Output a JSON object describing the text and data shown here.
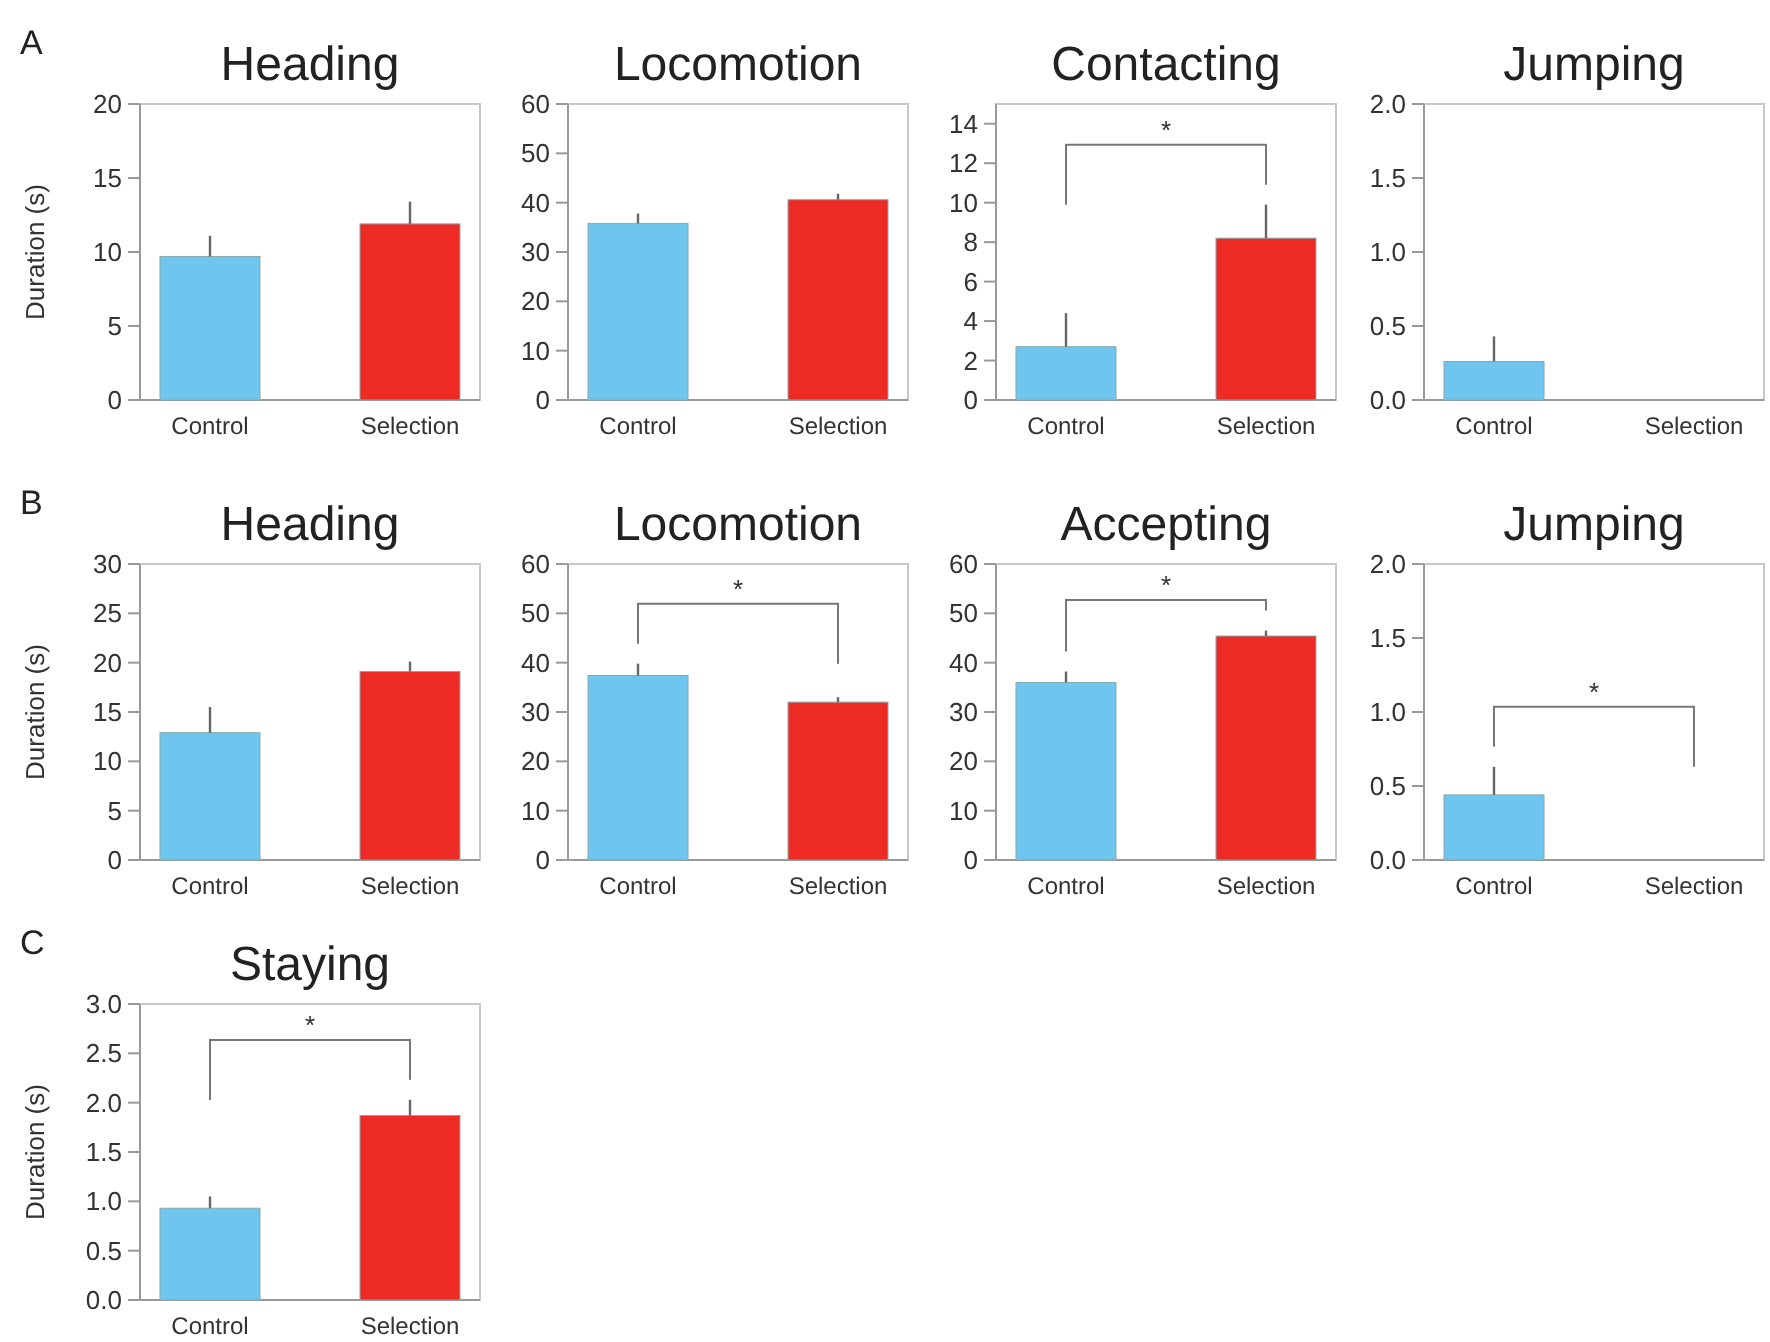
{
  "chart_data": [
    {
      "type": "bar",
      "title": "Heading",
      "ylabel": "Duration (s)",
      "categories": [
        "Control",
        "Selection"
      ],
      "values": [
        9.7,
        11.9
      ],
      "colors": [
        "#6ec6ee",
        "#ee2a24"
      ],
      "errors": [
        [
          9.7,
          11.1
        ],
        [
          11.9,
          13.4
        ]
      ],
      "ylim": [
        0,
        20
      ],
      "yticks": [
        0,
        5,
        10,
        15,
        20
      ],
      "annotations": [
        "A"
      ]
    },
    {
      "type": "bar",
      "title": "Locomotion",
      "categories": [
        "Control",
        "Selection"
      ],
      "values": [
        35.8,
        40.6
      ],
      "colors": [
        "#6ec6ee",
        "#ee2a24"
      ],
      "errors": [
        [
          35.8,
          37.8
        ],
        [
          40.6,
          41.8
        ]
      ],
      "ylim": [
        0,
        60
      ],
      "yticks": [
        0,
        10,
        20,
        30,
        40,
        50,
        60
      ]
    },
    {
      "type": "bar",
      "title": "Contacting",
      "categories": [
        "Control",
        "Selection"
      ],
      "values": [
        2.7,
        8.2
      ],
      "colors": [
        "#6ec6ee",
        "#ee2a24"
      ],
      "errors": [
        [
          2.7,
          4.4
        ],
        [
          8.2,
          9.9
        ]
      ],
      "ylim": [
        0,
        15
      ],
      "yticks": [
        0,
        2,
        4,
        6,
        8,
        10,
        12,
        14
      ],
      "annotations": [
        "*"
      ]
    },
    {
      "type": "bar",
      "title": "Jumping",
      "categories": [
        "Control",
        "Selection"
      ],
      "values": [
        0.26,
        0
      ],
      "colors": [
        "#6ec6ee",
        "#ee2a24"
      ],
      "errors": [
        [
          0.26,
          0.43
        ],
        null
      ],
      "ylim": [
        0,
        2
      ],
      "yticks": [
        {
          "value": 0,
          "label": "0.0"
        },
        0.5,
        {
          "value": 1,
          "label": "1.0"
        },
        1.5,
        {
          "value": 2,
          "label": "2.0"
        }
      ]
    },
    {
      "type": "bar",
      "title": "Heading",
      "ylabel": "Duration (s)",
      "categories": [
        "Control",
        "Selection"
      ],
      "values": [
        12.9,
        19.1
      ],
      "colors": [
        "#6ec6ee",
        "#ee2a24"
      ],
      "errors": [
        [
          12.9,
          15.5
        ],
        [
          19.1,
          20.1
        ]
      ],
      "ylim": [
        0,
        30
      ],
      "yticks": [
        0,
        5,
        10,
        15,
        20,
        25,
        30
      ],
      "annotations": [
        "B"
      ]
    },
    {
      "type": "bar",
      "title": "Locomotion",
      "categories": [
        "Control",
        "Selection"
      ],
      "values": [
        37.4,
        32.0
      ],
      "colors": [
        "#6ec6ee",
        "#ee2a24"
      ],
      "errors": [
        [
          37.4,
          39.8
        ],
        [
          32.0,
          33.0
        ]
      ],
      "ylim": [
        0,
        60
      ],
      "yticks": [
        0,
        10,
        20,
        30,
        40,
        50,
        60
      ],
      "annotations": [
        "*"
      ]
    },
    {
      "type": "bar",
      "title": "Accepting",
      "categories": [
        "Control",
        "Selection"
      ],
      "values": [
        36.0,
        45.4
      ],
      "colors": [
        "#6ec6ee",
        "#ee2a24"
      ],
      "errors": [
        [
          36.0,
          38.2
        ],
        [
          45.4,
          46.5
        ]
      ],
      "ylim": [
        0,
        60
      ],
      "yticks": [
        0,
        10,
        20,
        30,
        40,
        50,
        60
      ],
      "annotations": [
        "*"
      ]
    },
    {
      "type": "bar",
      "title": "Jumping",
      "categories": [
        "Control",
        "Selection"
      ],
      "values": [
        0.44,
        0
      ],
      "colors": [
        "#6ec6ee",
        "#ee2a24"
      ],
      "errors": [
        [
          0.44,
          0.63
        ],
        null
      ],
      "ylim": [
        0,
        2
      ],
      "yticks": [
        {
          "value": 0,
          "label": "0.0"
        },
        0.5,
        {
          "value": 1,
          "label": "1.0"
        },
        1.5,
        {
          "value": 2,
          "label": "2.0"
        }
      ],
      "annotations": [
        "*"
      ]
    },
    {
      "type": "bar",
      "title": "Staying",
      "ylabel": "Duration (s)",
      "categories": [
        "Control",
        "Selection"
      ],
      "values": [
        0.93,
        1.87
      ],
      "colors": [
        "#6ec6ee",
        "#ee2a24"
      ],
      "errors": [
        [
          0.93,
          1.05
        ],
        [
          1.87,
          2.03
        ]
      ],
      "ylim": [
        0,
        3
      ],
      "yticks": [
        {
          "value": 0,
          "label": "0.0"
        },
        0.5,
        {
          "value": 1,
          "label": "1.0"
        },
        1.5,
        {
          "value": 2,
          "label": "2.0"
        },
        2.5,
        {
          "value": 3,
          "label": "3.0"
        }
      ],
      "annotations": [
        "C",
        "*"
      ]
    }
  ]
}
